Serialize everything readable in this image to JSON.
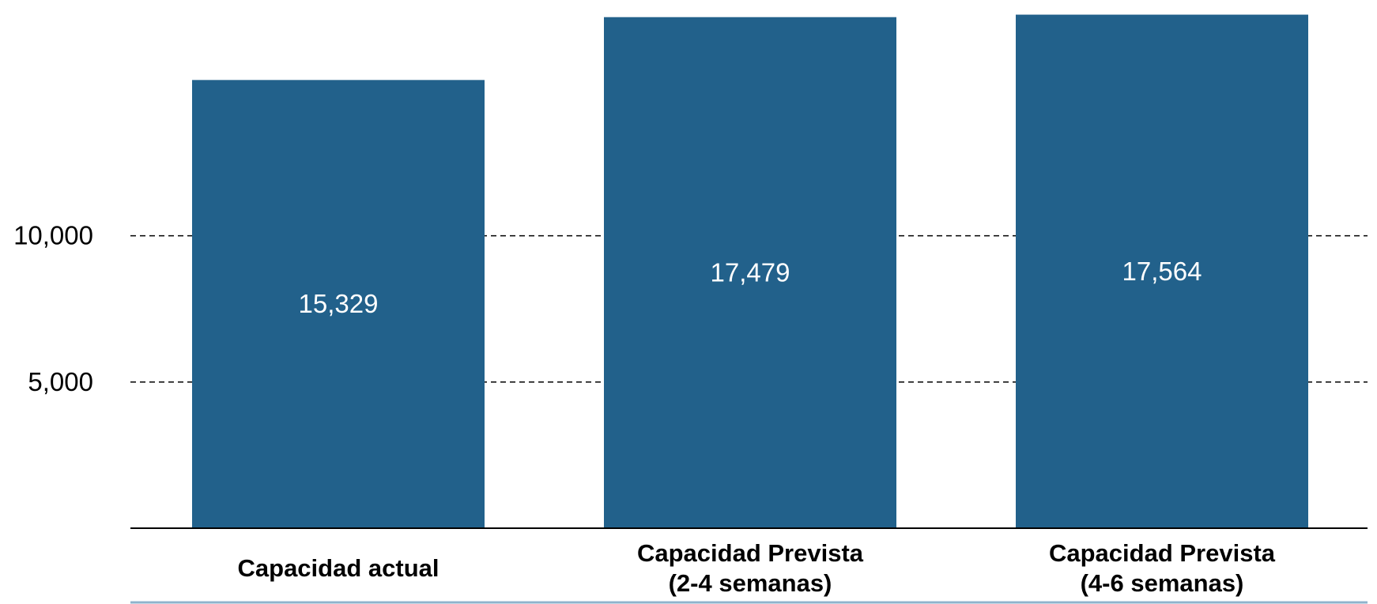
{
  "chart_data": {
    "type": "bar",
    "categories": [
      [
        "Capacidad actual"
      ],
      [
        "Capacidad Prevista",
        "(2-4 semanas)"
      ],
      [
        "Capacidad Prevista",
        "(4-6 semanas)"
      ]
    ],
    "values": [
      15329,
      17479,
      17564
    ],
    "value_labels": [
      "15,329",
      "17,479",
      "17,564"
    ],
    "y_ticks": [
      {
        "value": 5000,
        "label": "5,000"
      },
      {
        "value": 10000,
        "label": "10,000"
      }
    ],
    "ylim": [
      0,
      17660
    ],
    "grid": "dashed horizontal at ticks",
    "title": "",
    "xlabel": "",
    "ylabel": "",
    "colors": {
      "bar": "#22618b",
      "bottom_rule": "#8fb3cc"
    }
  }
}
